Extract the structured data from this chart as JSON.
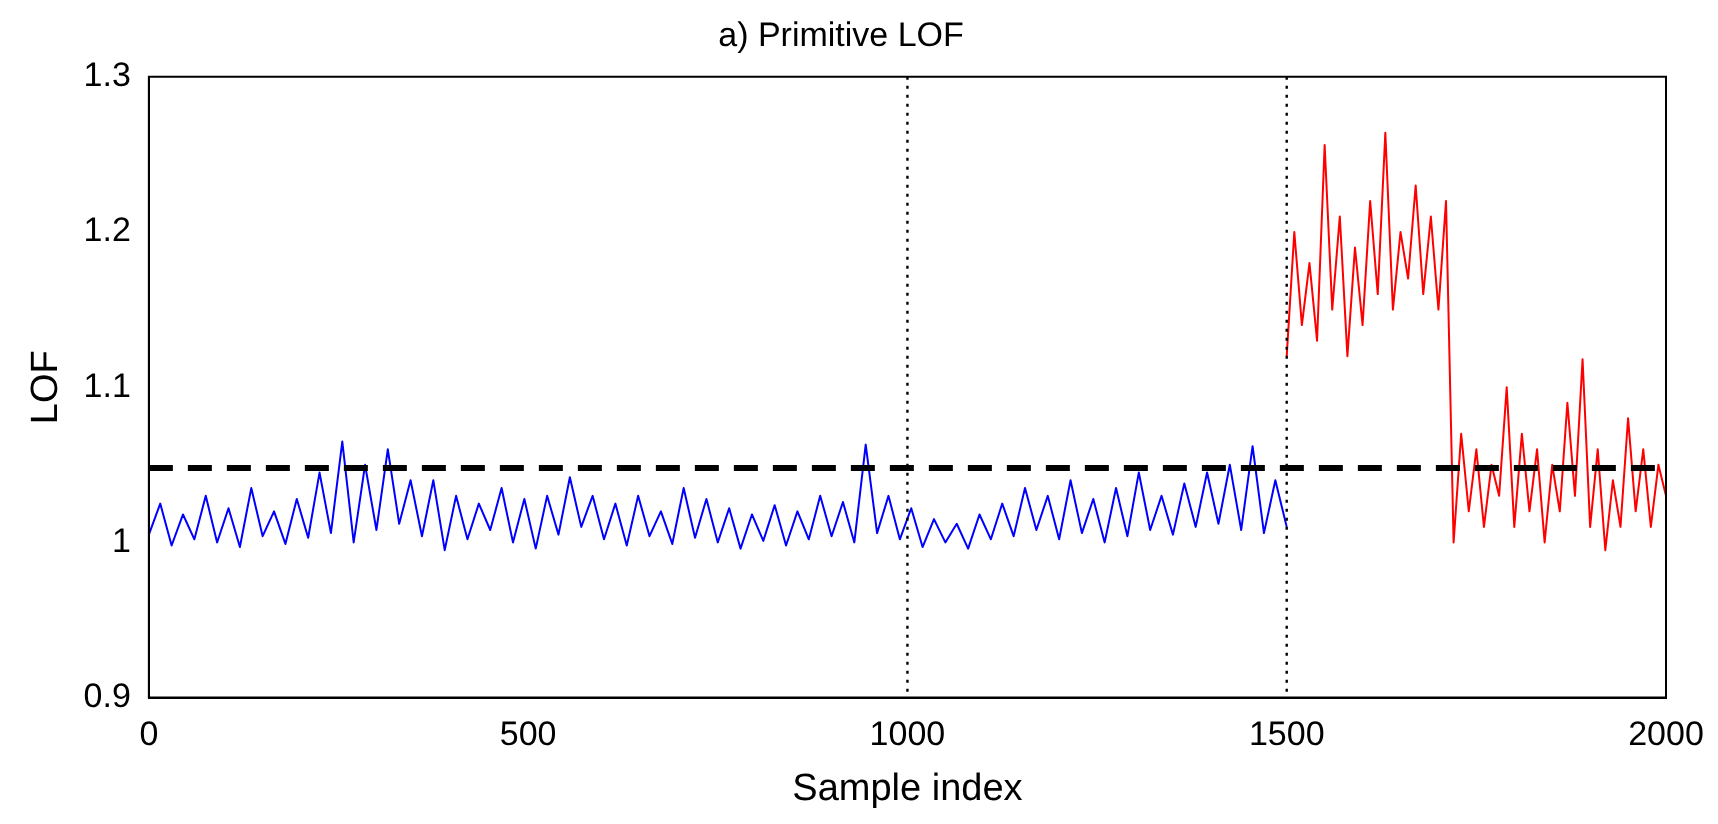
{
  "chart_data": {
    "type": "line",
    "title": "a) Primitive LOF",
    "xlabel": "Sample index",
    "ylabel": "LOF",
    "xlim": [
      0,
      2000
    ],
    "xticks": [
      0,
      500,
      1000,
      1500,
      2000
    ],
    "ylim": [
      0.9,
      1.3
    ],
    "yticks": [
      0.9,
      1,
      1.1,
      1.2,
      1.3
    ],
    "grid": false,
    "legend": false,
    "marker": "none",
    "line_style": "solid",
    "series": [
      {
        "color": "#0000ff",
        "x": [
          0,
          15,
          30,
          45,
          60,
          75,
          90,
          105,
          120,
          135,
          150,
          165,
          180,
          195,
          210,
          225,
          240,
          255,
          270,
          285,
          300,
          315,
          330,
          345,
          360,
          375,
          390,
          405,
          420,
          435,
          450,
          465,
          480,
          495,
          510,
          525,
          540,
          555,
          570,
          585,
          600,
          615,
          630,
          645,
          660,
          675,
          690,
          705,
          720,
          735,
          750,
          765,
          780,
          795,
          810,
          825,
          840,
          855,
          870,
          885,
          900,
          915,
          930,
          945,
          960,
          975,
          990,
          1005,
          1020,
          1035,
          1050,
          1065,
          1080,
          1095,
          1110,
          1125,
          1140,
          1155,
          1170,
          1185,
          1200,
          1215,
          1230,
          1245,
          1260,
          1275,
          1290,
          1305,
          1320,
          1335,
          1350,
          1365,
          1380,
          1395,
          1410,
          1425,
          1440,
          1455,
          1470,
          1485,
          1500
        ],
        "values": [
          1.005,
          1.025,
          0.998,
          1.018,
          1.002,
          1.03,
          1.0,
          1.022,
          0.997,
          1.035,
          1.004,
          1.02,
          0.999,
          1.028,
          1.003,
          1.045,
          1.006,
          1.065,
          1.0,
          1.05,
          1.008,
          1.06,
          1.012,
          1.04,
          1.004,
          1.04,
          0.995,
          1.03,
          1.002,
          1.025,
          1.008,
          1.035,
          1.0,
          1.028,
          0.996,
          1.03,
          1.005,
          1.042,
          1.01,
          1.03,
          1.002,
          1.025,
          0.998,
          1.03,
          1.004,
          1.02,
          0.999,
          1.035,
          1.003,
          1.028,
          1.0,
          1.022,
          0.996,
          1.018,
          1.001,
          1.024,
          0.998,
          1.02,
          1.002,
          1.03,
          1.004,
          1.026,
          1.0,
          1.063,
          1.006,
          1.03,
          1.002,
          1.022,
          0.997,
          1.015,
          1.0,
          1.012,
          0.996,
          1.018,
          1.002,
          1.025,
          1.004,
          1.035,
          1.008,
          1.03,
          1.002,
          1.04,
          1.006,
          1.028,
          1.0,
          1.035,
          1.004,
          1.045,
          1.008,
          1.03,
          1.005,
          1.038,
          1.01,
          1.045,
          1.012,
          1.05,
          1.008,
          1.062,
          1.006,
          1.04,
          1.01
        ]
      },
      {
        "color": "#ff0000",
        "x": [
          1500,
          1510,
          1520,
          1530,
          1540,
          1550,
          1560,
          1570,
          1580,
          1590,
          1600,
          1610,
          1620,
          1630,
          1640,
          1650,
          1660,
          1670,
          1680,
          1690,
          1700,
          1710,
          1720,
          1730,
          1740,
          1750,
          1760,
          1770,
          1780,
          1790,
          1800,
          1810,
          1820,
          1830,
          1840,
          1850,
          1860,
          1870,
          1880,
          1890,
          1900,
          1910,
          1920,
          1930,
          1940,
          1950,
          1960,
          1970,
          1980,
          1990,
          2000
        ],
        "values": [
          1.12,
          1.2,
          1.14,
          1.18,
          1.13,
          1.256,
          1.15,
          1.21,
          1.12,
          1.19,
          1.14,
          1.22,
          1.16,
          1.264,
          1.15,
          1.2,
          1.17,
          1.23,
          1.16,
          1.21,
          1.15,
          1.22,
          1.0,
          1.07,
          1.02,
          1.06,
          1.01,
          1.05,
          1.03,
          1.1,
          1.01,
          1.07,
          1.02,
          1.06,
          1.0,
          1.05,
          1.02,
          1.09,
          1.03,
          1.118,
          1.01,
          1.06,
          0.995,
          1.04,
          1.01,
          1.08,
          1.02,
          1.06,
          1.01,
          1.05,
          1.03
        ]
      }
    ],
    "ref_lines": [
      {
        "axis": "y",
        "value": 1.048,
        "color": "#000000",
        "line_style": "dashed"
      },
      {
        "axis": "x",
        "value": 1000,
        "color": "#000000",
        "line_style": "dotted"
      },
      {
        "axis": "x",
        "value": 1500,
        "color": "#000000",
        "line_style": "dotted"
      }
    ]
  }
}
